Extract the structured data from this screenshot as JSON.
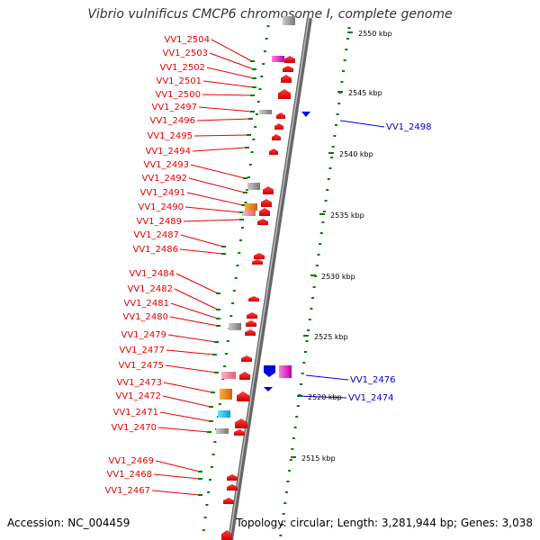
{
  "header": {
    "title": "Vibrio vulnificus CMCP6 chromosome I, complete genome"
  },
  "footer": {
    "accession": "Accession: NC_004459",
    "summary": "Topology: circular; Length: 3,281,944 bp; Genes: 3,038"
  },
  "colors": {
    "forward": "#e80000",
    "reverse": "#0000dd",
    "backbone": "#888888",
    "ruler": "#007a00"
  },
  "ruler": [
    {
      "label": "2550 kbp"
    },
    {
      "label": "2545 kbp"
    },
    {
      "label": "2540 kbp"
    },
    {
      "label": "2535 kbp"
    },
    {
      "label": "2530 kbp"
    },
    {
      "label": "2525 kbp"
    },
    {
      "label": "2520 kbp"
    },
    {
      "label": "2515 kbp"
    }
  ],
  "genes_forward": [
    {
      "id": "VV1_2504"
    },
    {
      "id": "VV1_2503"
    },
    {
      "id": "VV1_2502"
    },
    {
      "id": "VV1_2501"
    },
    {
      "id": "VV1_2500"
    },
    {
      "id": "VV1_2497"
    },
    {
      "id": "VV1_2496"
    },
    {
      "id": "VV1_2495"
    },
    {
      "id": "VV1_2494"
    },
    {
      "id": "VV1_2493"
    },
    {
      "id": "VV1_2492"
    },
    {
      "id": "VV1_2491"
    },
    {
      "id": "VV1_2490"
    },
    {
      "id": "VV1_2489"
    },
    {
      "id": "VV1_2487"
    },
    {
      "id": "VV1_2486"
    },
    {
      "id": "VV1_2484"
    },
    {
      "id": "VV1_2482"
    },
    {
      "id": "VV1_2481"
    },
    {
      "id": "VV1_2480"
    },
    {
      "id": "VV1_2479"
    },
    {
      "id": "VV1_2477"
    },
    {
      "id": "VV1_2475"
    },
    {
      "id": "VV1_2473"
    },
    {
      "id": "VV1_2472"
    },
    {
      "id": "VV1_2471"
    },
    {
      "id": "VV1_2470"
    },
    {
      "id": "VV1_2469"
    },
    {
      "id": "VV1_2468"
    },
    {
      "id": "VV1_2467"
    }
  ],
  "genes_reverse": [
    {
      "id": "VV1_2498"
    },
    {
      "id": "VV1_2476"
    },
    {
      "id": "VV1_2474"
    }
  ]
}
